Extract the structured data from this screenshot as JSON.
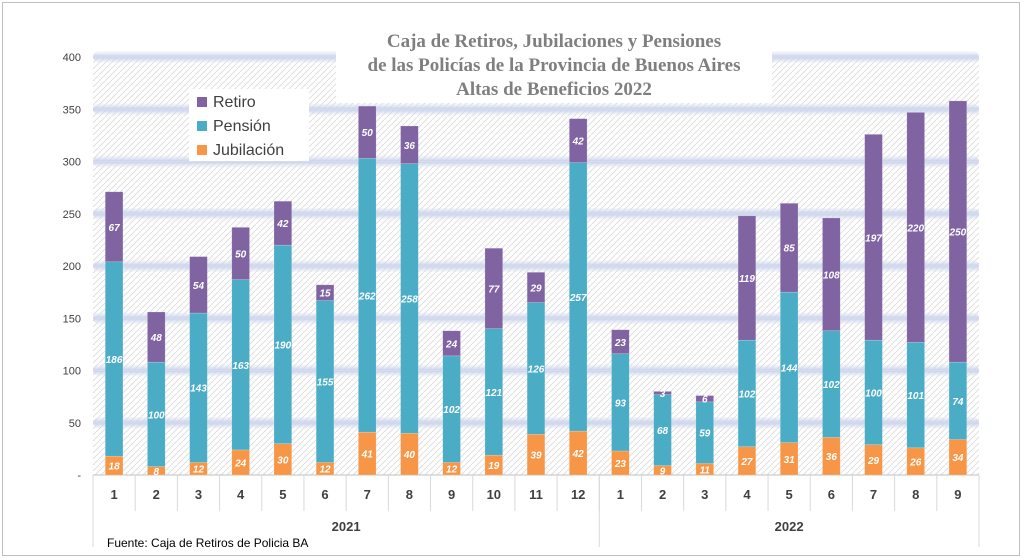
{
  "chart_data": {
    "type": "bar",
    "stacked": true,
    "title": [
      "Caja de Retiros, Jubilaciones y Pensiones",
      "de las Policías de la Provincia de Buenos Aires",
      "Altas de Beneficios 2022"
    ],
    "source": "Fuente: Caja de Retiros de Policia BA",
    "ylim": [
      0,
      400
    ],
    "yticks": [
      "-",
      "50",
      "100",
      "150",
      "200",
      "250",
      "300",
      "350",
      "400"
    ],
    "categories": [
      "1",
      "2",
      "3",
      "4",
      "5",
      "6",
      "7",
      "8",
      "9",
      "10",
      "11",
      "12",
      "1",
      "2",
      "3",
      "4",
      "5",
      "6",
      "7",
      "8",
      "9"
    ],
    "groups": [
      {
        "label": "2021",
        "count": 12
      },
      {
        "label": "2022",
        "count": 9
      }
    ],
    "legend_position": "top-left",
    "grid": true,
    "series": [
      {
        "name": "Jubilación",
        "color": "#f79646",
        "values": [
          18,
          8,
          12,
          24,
          30,
          12,
          41,
          40,
          12,
          19,
          39,
          42,
          23,
          9,
          11,
          27,
          31,
          36,
          29,
          26,
          34
        ]
      },
      {
        "name": "Pensión",
        "color": "#4bacc6",
        "values": [
          186,
          100,
          143,
          163,
          190,
          155,
          262,
          258,
          102,
          121,
          126,
          257,
          93,
          68,
          59,
          102,
          144,
          102,
          100,
          101,
          74
        ]
      },
      {
        "name": "Retiro",
        "color": "#8064a2",
        "values": [
          67,
          48,
          54,
          50,
          42,
          15,
          50,
          36,
          24,
          77,
          29,
          42,
          23,
          3,
          6,
          119,
          85,
          108,
          197,
          220,
          250
        ]
      }
    ]
  }
}
